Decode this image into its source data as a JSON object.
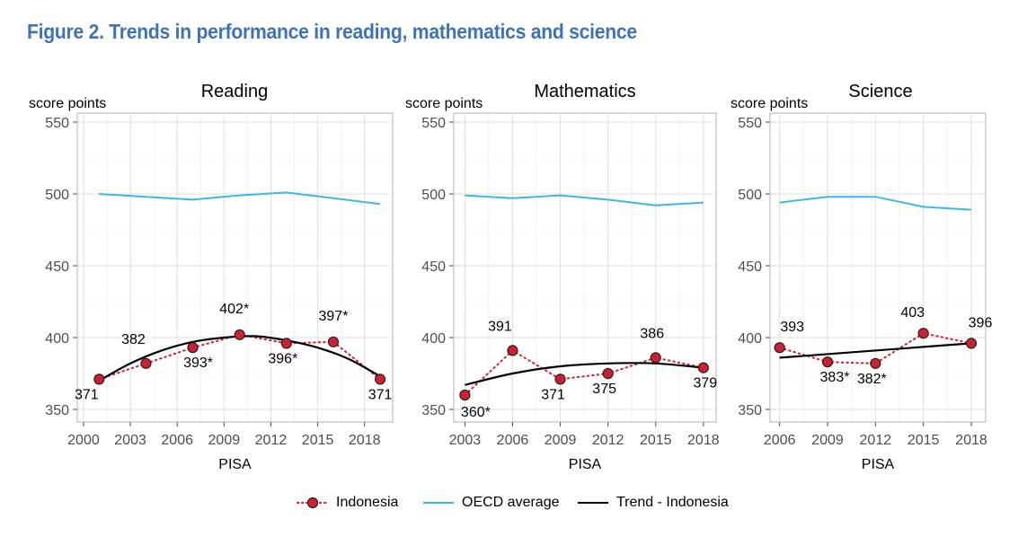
{
  "figure": {
    "title": "Figure 2. Trends in performance in reading, mathematics and science",
    "title_color": "#3e74b4"
  },
  "legend": [
    {
      "label": "Indonesia",
      "icon": "dotted-line-circle-marker",
      "color": "#cf2031"
    },
    {
      "label": "OECD average",
      "icon": "line",
      "color": "#3fb8e0"
    },
    {
      "label": "Trend - Indonesia",
      "icon": "line",
      "color": "#000000"
    }
  ],
  "chart_data": [
    {
      "type": "line",
      "title": "Reading",
      "ylabel": "score points",
      "xlabel": "PISA",
      "ylim": [
        350,
        550
      ],
      "yticks": [
        350,
        400,
        450,
        500,
        550
      ],
      "xticks": [
        2000,
        2003,
        2006,
        2009,
        2012,
        2015,
        2018
      ],
      "grid": true,
      "series": [
        {
          "name": "Indonesia",
          "color": "#cf2031",
          "style": "dotted-markers",
          "x": [
            2001,
            2004,
            2007,
            2010,
            2013,
            2016,
            2019
          ],
          "y": [
            371,
            382,
            393,
            402,
            396,
            397,
            371
          ],
          "labels": [
            "371",
            "382",
            "393*",
            "402*",
            "396*",
            "397*",
            "371"
          ]
        },
        {
          "name": "OECD average",
          "color": "#3fb8e0",
          "style": "solid",
          "x": [
            2001,
            2004,
            2007,
            2010,
            2013,
            2016,
            2019
          ],
          "y": [
            500,
            498,
            496,
            499,
            501,
            497,
            493
          ]
        },
        {
          "name": "Trend - Indonesia",
          "color": "#000000",
          "style": "solid-curve",
          "x": [
            2001,
            2003,
            2005,
            2007,
            2009,
            2011,
            2013,
            2015,
            2017,
            2019
          ],
          "y": [
            370,
            382,
            391,
            397,
            400,
            401,
            398,
            393,
            385,
            373
          ]
        }
      ]
    },
    {
      "type": "line",
      "title": "Mathematics",
      "ylabel": "score points",
      "xlabel": "PISA",
      "ylim": [
        350,
        550
      ],
      "yticks": [
        350,
        400,
        450,
        500,
        550
      ],
      "xticks": [
        2003,
        2006,
        2009,
        2012,
        2015,
        2018
      ],
      "grid": true,
      "series": [
        {
          "name": "Indonesia",
          "color": "#cf2031",
          "style": "dotted-markers",
          "x": [
            2003,
            2006,
            2009,
            2012,
            2015,
            2018
          ],
          "y": [
            360,
            391,
            371,
            375,
            386,
            379
          ],
          "labels": [
            "360*",
            "391",
            "371",
            "375",
            "386",
            "379"
          ]
        },
        {
          "name": "OECD average",
          "color": "#3fb8e0",
          "style": "solid",
          "x": [
            2003,
            2006,
            2009,
            2012,
            2015,
            2018
          ],
          "y": [
            499,
            497,
            499,
            496,
            492,
            494
          ]
        },
        {
          "name": "Trend - Indonesia",
          "color": "#000000",
          "style": "solid-curve",
          "x": [
            2003,
            2006,
            2009,
            2012,
            2015,
            2018
          ],
          "y": [
            367,
            375,
            380,
            382,
            382,
            379
          ]
        }
      ]
    },
    {
      "type": "line",
      "title": "Science",
      "ylabel": "score points",
      "xlabel": "PISA",
      "ylim": [
        350,
        550
      ],
      "yticks": [
        350,
        400,
        450,
        500,
        550
      ],
      "xticks": [
        2006,
        2009,
        2012,
        2015,
        2018
      ],
      "grid": true,
      "series": [
        {
          "name": "Indonesia",
          "color": "#cf2031",
          "style": "dotted-markers",
          "x": [
            2006,
            2009,
            2012,
            2015,
            2018
          ],
          "y": [
            393,
            383,
            382,
            403,
            396
          ],
          "labels": [
            "393",
            "383*",
            "382*",
            "403",
            "396"
          ]
        },
        {
          "name": "OECD average",
          "color": "#3fb8e0",
          "style": "solid",
          "x": [
            2006,
            2009,
            2012,
            2015,
            2018
          ],
          "y": [
            494,
            498,
            498,
            491,
            489
          ]
        },
        {
          "name": "Trend - Indonesia",
          "color": "#000000",
          "style": "solid-curve",
          "x": [
            2006,
            2018
          ],
          "y": [
            386,
            396
          ]
        }
      ]
    }
  ]
}
